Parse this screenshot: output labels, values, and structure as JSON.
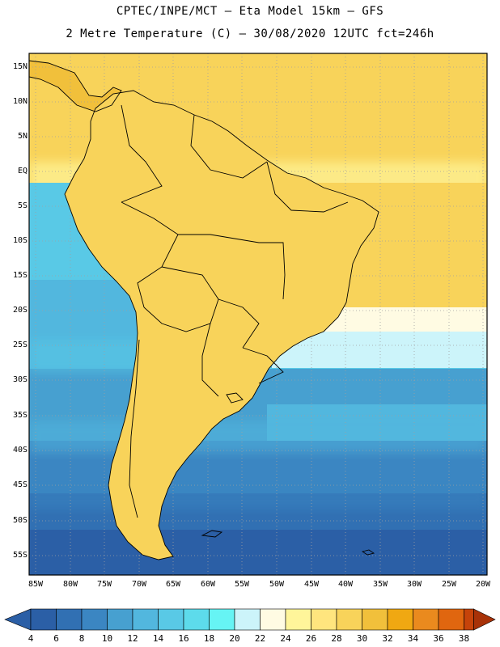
{
  "header": {
    "line1": "CPTEC/INPE/MCT –  Eta Model 15km – GFS",
    "line2": "2 Metre Temperature (C) – 30/08/2020 12UTC fct=246h"
  },
  "axes": {
    "lat_labels": [
      "15N",
      "10N",
      "5N",
      "EQ",
      "5S",
      "10S",
      "15S",
      "20S",
      "25S",
      "30S",
      "35S",
      "40S",
      "45S",
      "50S",
      "55S"
    ],
    "lon_labels": [
      "85W",
      "80W",
      "75W",
      "70W",
      "65W",
      "60W",
      "55W",
      "50W",
      "45W",
      "40W",
      "35W",
      "30W",
      "25W",
      "20W"
    ]
  },
  "colorbar": {
    "labels": [
      "4",
      "6",
      "8",
      "10",
      "12",
      "14",
      "16",
      "18",
      "20",
      "22",
      "24",
      "26",
      "28",
      "30",
      "32",
      "34",
      "36",
      "38"
    ],
    "colors": [
      "#2b5fa6",
      "#3170b3",
      "#3b86c2",
      "#47a0d0",
      "#52b7de",
      "#59c9e6",
      "#5ddbeb",
      "#66f4f4",
      "#ccf4fa",
      "#fffbe3",
      "#fff59a",
      "#ffe57e",
      "#f8d35a",
      "#f1c03b",
      "#f0a812",
      "#ea8a1e",
      "#e0660f",
      "#c6430a",
      "#a83208"
    ]
  },
  "legend_colors": {
    "ocean_cold": "#2b5fa6",
    "ocean_mid": "#47a0d0",
    "ocean_warm": "#59c9e6",
    "tropical_ocean": "#f8d35a",
    "land_hot": "#ea8a1e",
    "land_hottest": "#c6430a"
  }
}
